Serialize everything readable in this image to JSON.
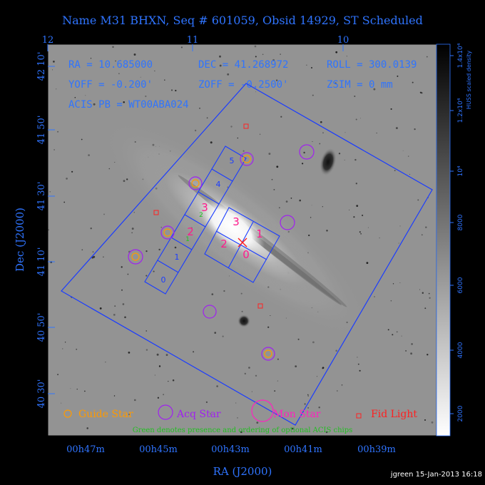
{
  "header": {
    "title": "Name M31 BHXN, Seq # 601059, Obsid 14929, ST Scheduled"
  },
  "info": {
    "ra": "RA = 10.685000",
    "dec": "DEC = 41.268972",
    "roll": "ROLL = 300.0139",
    "yoff": "YOFF = -0.200'",
    "zoff": "ZOFF = -0.2500'",
    "zsim": "ZSIM = 0 mm",
    "acis_pb": "ACIS PB = WT00ABA024"
  },
  "top_axis": {
    "ticks": [
      "12",
      "11",
      "10"
    ]
  },
  "left_axis": {
    "label": "Dec (J2000)",
    "ticks": [
      "42 10'",
      "41 50'",
      "41 30'",
      "41 10'",
      "40 50'",
      "40 30'"
    ]
  },
  "bottom_axis": {
    "label": "RA (J2000)",
    "ticks": [
      "00h47m",
      "00h45m",
      "00h43m",
      "00h41m",
      "00h39m"
    ]
  },
  "colorbar": {
    "label": "HUSS scaled density",
    "ticks": [
      "2000",
      "4000",
      "6000",
      "8000",
      "10⁴",
      "1.2x10⁴",
      "1.4x10⁴"
    ]
  },
  "chips": {
    "acis_s": [
      "0",
      "1",
      "2",
      "3",
      "4",
      "5"
    ],
    "acis_i": [
      "3",
      "1",
      "2",
      "0"
    ],
    "optional": [
      "2",
      "1"
    ]
  },
  "legend": {
    "guide": "Guide Star",
    "acq": "Acq Star",
    "mon": "Mon Star",
    "fid": "Fid Light",
    "note": "Green denotes presence and ordering of optional ACIS chips"
  },
  "footer": {
    "credit": "jgreen 15-Jan-2013 16:18"
  },
  "colors": {
    "axis": "#2f74ff",
    "guide": "#ff9a00",
    "acq": "#a020f0",
    "mon": "#ff20c0",
    "fid": "#ff2020",
    "optional": "#20c020",
    "chip_label": "#ff1a8c"
  }
}
